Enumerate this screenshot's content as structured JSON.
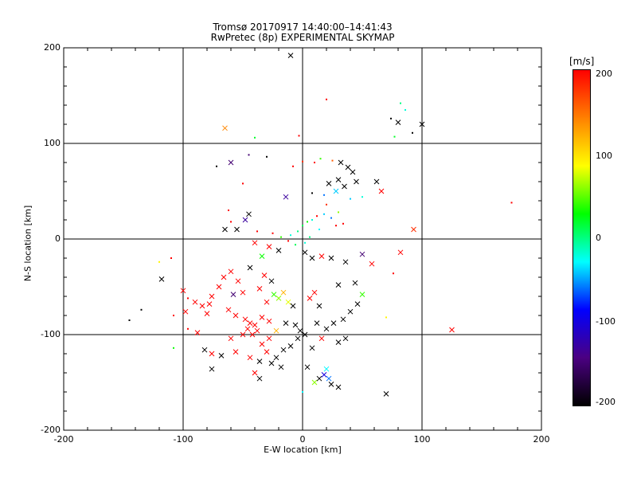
{
  "title_line1": "Tromsø 20170917 14:40:00–14:41:43",
  "title_line2": "RwPretec (8p) EXPERIMENTAL SKYMAP",
  "colorbar": {
    "unit": "[m/s]",
    "ticks": [
      "200",
      "100",
      "0",
      "-100",
      "-200"
    ],
    "range": [
      -200,
      200
    ],
    "colormap": [
      "#000000",
      "#4b0082",
      "#0000ff",
      "#00ffff",
      "#00ff00",
      "#ffff00",
      "#ff8000",
      "#ff0000"
    ]
  },
  "chart_data": {
    "type": "scatter",
    "title": "Tromsø 20170917 14:40:00–14:41:43 RwPretec (8p) EXPERIMENTAL SKYMAP",
    "xlabel": "E-W location [km]",
    "ylabel": "N-S location [km]",
    "xlim": [
      -200,
      200
    ],
    "ylim": [
      -200,
      200
    ],
    "x_ticks": [
      "-200",
      "-100",
      "0",
      "100",
      "200"
    ],
    "y_ticks": [
      "200",
      "100",
      "0",
      "-100",
      "-200"
    ],
    "grid": [
      -100,
      0,
      100
    ],
    "color_variable": "velocity [m/s]",
    "points": [
      {
        "x": -10,
        "y": 192,
        "v": -200,
        "m": "x"
      },
      {
        "x": 20,
        "y": 146,
        "v": 200,
        "m": "dot"
      },
      {
        "x": 82,
        "y": 142,
        "v": 0,
        "m": "dot"
      },
      {
        "x": 86,
        "y": 135,
        "v": -20,
        "m": "dot"
      },
      {
        "x": 74,
        "y": 126,
        "v": -200,
        "m": "dot"
      },
      {
        "x": 80,
        "y": 122,
        "v": -200,
        "m": "x"
      },
      {
        "x": 100,
        "y": 120,
        "v": -200,
        "m": "x"
      },
      {
        "x": 77,
        "y": 107,
        "v": 20,
        "m": "dot"
      },
      {
        "x": 92,
        "y": 111,
        "v": -200,
        "m": "dot"
      },
      {
        "x": -65,
        "y": 116,
        "v": 140,
        "m": "x"
      },
      {
        "x": -40,
        "y": 106,
        "v": 20,
        "m": "dot"
      },
      {
        "x": -3,
        "y": 108,
        "v": 200,
        "m": "dot"
      },
      {
        "x": -72,
        "y": 76,
        "v": -200,
        "m": "dot"
      },
      {
        "x": -60,
        "y": 80,
        "v": -150,
        "m": "x"
      },
      {
        "x": -45,
        "y": 88,
        "v": -150,
        "m": "dot"
      },
      {
        "x": -30,
        "y": 86,
        "v": -200,
        "m": "dot"
      },
      {
        "x": -8,
        "y": 76,
        "v": 200,
        "m": "dot"
      },
      {
        "x": 0,
        "y": 81,
        "v": 180,
        "m": "dot"
      },
      {
        "x": 10,
        "y": 80,
        "v": 200,
        "m": "dot"
      },
      {
        "x": 15,
        "y": 84,
        "v": 40,
        "m": "dot"
      },
      {
        "x": 25,
        "y": 82,
        "v": 160,
        "m": "dot"
      },
      {
        "x": 32,
        "y": 80,
        "v": -200,
        "m": "x"
      },
      {
        "x": 38,
        "y": 75,
        "v": -200,
        "m": "x"
      },
      {
        "x": 42,
        "y": 70,
        "v": -200,
        "m": "x"
      },
      {
        "x": 45,
        "y": 60,
        "v": -200,
        "m": "x"
      },
      {
        "x": 30,
        "y": 62,
        "v": -200,
        "m": "x"
      },
      {
        "x": 35,
        "y": 55,
        "v": -200,
        "m": "x"
      },
      {
        "x": 28,
        "y": 50,
        "v": -40,
        "m": "x"
      },
      {
        "x": 22,
        "y": 58,
        "v": -200,
        "m": "x"
      },
      {
        "x": 62,
        "y": 60,
        "v": -200,
        "m": "x"
      },
      {
        "x": 66,
        "y": 50,
        "v": 200,
        "m": "x"
      },
      {
        "x": 40,
        "y": 42,
        "v": -40,
        "m": "dot"
      },
      {
        "x": 50,
        "y": 44,
        "v": -20,
        "m": "dot"
      },
      {
        "x": 18,
        "y": 46,
        "v": -60,
        "m": "dot"
      },
      {
        "x": 8,
        "y": 48,
        "v": -200,
        "m": "dot"
      },
      {
        "x": -14,
        "y": 44,
        "v": -130,
        "m": "x"
      },
      {
        "x": -50,
        "y": 58,
        "v": 200,
        "m": "dot"
      },
      {
        "x": -62,
        "y": 30,
        "v": 200,
        "m": "dot"
      },
      {
        "x": -45,
        "y": 26,
        "v": -200,
        "m": "x"
      },
      {
        "x": -48,
        "y": 20,
        "v": -130,
        "m": "x"
      },
      {
        "x": -60,
        "y": 18,
        "v": 200,
        "m": "dot"
      },
      {
        "x": -55,
        "y": 10,
        "v": -200,
        "m": "x"
      },
      {
        "x": -65,
        "y": 10,
        "v": -200,
        "m": "x"
      },
      {
        "x": -38,
        "y": 8,
        "v": 200,
        "m": "dot"
      },
      {
        "x": -25,
        "y": 6,
        "v": 200,
        "m": "dot"
      },
      {
        "x": -18,
        "y": 2,
        "v": 40,
        "m": "dot"
      },
      {
        "x": -10,
        "y": 4,
        "v": -20,
        "m": "dot"
      },
      {
        "x": -4,
        "y": 8,
        "v": 0,
        "m": "dot"
      },
      {
        "x": 0,
        "y": 14,
        "v": 10,
        "m": "dot"
      },
      {
        "x": 4,
        "y": 18,
        "v": 30,
        "m": "dot"
      },
      {
        "x": 8,
        "y": 20,
        "v": -20,
        "m": "dot"
      },
      {
        "x": 12,
        "y": 24,
        "v": 200,
        "m": "dot"
      },
      {
        "x": 18,
        "y": 26,
        "v": -40,
        "m": "dot"
      },
      {
        "x": 24,
        "y": 22,
        "v": -60,
        "m": "dot"
      },
      {
        "x": 30,
        "y": 28,
        "v": 60,
        "m": "dot"
      },
      {
        "x": 28,
        "y": 14,
        "v": 200,
        "m": "dot"
      },
      {
        "x": 34,
        "y": 16,
        "v": 200,
        "m": "dot"
      },
      {
        "x": 20,
        "y": 36,
        "v": 180,
        "m": "dot"
      },
      {
        "x": 14,
        "y": 10,
        "v": -30,
        "m": "dot"
      },
      {
        "x": 6,
        "y": 2,
        "v": 0,
        "m": "dot"
      },
      {
        "x": 2,
        "y": -4,
        "v": -20,
        "m": "dot"
      },
      {
        "x": -6,
        "y": -6,
        "v": 10,
        "m": "dot"
      },
      {
        "x": -12,
        "y": -2,
        "v": 200,
        "m": "dot"
      },
      {
        "x": -20,
        "y": -12,
        "v": -200,
        "m": "x"
      },
      {
        "x": -28,
        "y": -8,
        "v": 200,
        "m": "x"
      },
      {
        "x": -40,
        "y": -4,
        "v": 200,
        "m": "x"
      },
      {
        "x": -34,
        "y": -18,
        "v": 30,
        "m": "x"
      },
      {
        "x": 2,
        "y": -14,
        "v": -200,
        "m": "x"
      },
      {
        "x": 8,
        "y": -20,
        "v": -200,
        "m": "x"
      },
      {
        "x": 16,
        "y": -18,
        "v": 200,
        "m": "x"
      },
      {
        "x": 24,
        "y": -20,
        "v": -200,
        "m": "x"
      },
      {
        "x": 36,
        "y": -24,
        "v": -200,
        "m": "x"
      },
      {
        "x": 50,
        "y": -16,
        "v": -150,
        "m": "x"
      },
      {
        "x": 58,
        "y": -26,
        "v": 200,
        "m": "x"
      },
      {
        "x": 82,
        "y": -14,
        "v": 200,
        "m": "x"
      },
      {
        "x": 93,
        "y": 10,
        "v": 180,
        "m": "x"
      },
      {
        "x": 175,
        "y": 38,
        "v": 200,
        "m": "dot"
      },
      {
        "x": -110,
        "y": -20,
        "v": 200,
        "m": "dot"
      },
      {
        "x": -118,
        "y": -42,
        "v": -200,
        "m": "x"
      },
      {
        "x": -120,
        "y": -24,
        "v": 90,
        "m": "dot"
      },
      {
        "x": -100,
        "y": -54,
        "v": 200,
        "m": "x"
      },
      {
        "x": -96,
        "y": -62,
        "v": 200,
        "m": "dot"
      },
      {
        "x": -90,
        "y": -66,
        "v": 200,
        "m": "x"
      },
      {
        "x": -78,
        "y": -68,
        "v": 200,
        "m": "x"
      },
      {
        "x": -76,
        "y": -60,
        "v": 200,
        "m": "x"
      },
      {
        "x": -80,
        "y": -78,
        "v": 200,
        "m": "x"
      },
      {
        "x": -98,
        "y": -76,
        "v": 200,
        "m": "x"
      },
      {
        "x": -84,
        "y": -70,
        "v": 200,
        "m": "x"
      },
      {
        "x": -70,
        "y": -50,
        "v": 200,
        "m": "x"
      },
      {
        "x": -66,
        "y": -40,
        "v": 200,
        "m": "x"
      },
      {
        "x": -60,
        "y": -34,
        "v": 200,
        "m": "x"
      },
      {
        "x": -54,
        "y": -44,
        "v": 200,
        "m": "x"
      },
      {
        "x": -58,
        "y": -58,
        "v": -150,
        "m": "x"
      },
      {
        "x": -50,
        "y": -56,
        "v": 200,
        "m": "x"
      },
      {
        "x": -62,
        "y": -74,
        "v": 200,
        "m": "x"
      },
      {
        "x": -56,
        "y": -80,
        "v": 200,
        "m": "x"
      },
      {
        "x": -48,
        "y": -84,
        "v": 200,
        "m": "x"
      },
      {
        "x": -44,
        "y": -88,
        "v": 200,
        "m": "x"
      },
      {
        "x": -46,
        "y": -94,
        "v": 200,
        "m": "x"
      },
      {
        "x": -40,
        "y": -90,
        "v": 200,
        "m": "x"
      },
      {
        "x": -38,
        "y": -96,
        "v": 200,
        "m": "x"
      },
      {
        "x": -42,
        "y": -100,
        "v": 200,
        "m": "x"
      },
      {
        "x": -50,
        "y": -100,
        "v": 200,
        "m": "x"
      },
      {
        "x": -34,
        "y": -82,
        "v": 200,
        "m": "x"
      },
      {
        "x": -30,
        "y": -66,
        "v": 200,
        "m": "x"
      },
      {
        "x": -24,
        "y": -58,
        "v": 40,
        "m": "x"
      },
      {
        "x": -20,
        "y": -62,
        "v": 60,
        "m": "x"
      },
      {
        "x": -16,
        "y": -56,
        "v": 120,
        "m": "x"
      },
      {
        "x": -12,
        "y": -66,
        "v": 80,
        "m": "x"
      },
      {
        "x": -8,
        "y": -70,
        "v": -200,
        "m": "x"
      },
      {
        "x": -26,
        "y": -44,
        "v": -200,
        "m": "x"
      },
      {
        "x": -32,
        "y": -38,
        "v": 200,
        "m": "x"
      },
      {
        "x": -44,
        "y": -30,
        "v": -200,
        "m": "x"
      },
      {
        "x": -36,
        "y": -52,
        "v": 200,
        "m": "x"
      },
      {
        "x": -28,
        "y": -86,
        "v": 200,
        "m": "x"
      },
      {
        "x": -22,
        "y": -96,
        "v": 120,
        "m": "x"
      },
      {
        "x": -28,
        "y": -104,
        "v": 200,
        "m": "x"
      },
      {
        "x": -34,
        "y": -110,
        "v": 200,
        "m": "x"
      },
      {
        "x": -30,
        "y": -118,
        "v": 200,
        "m": "x"
      },
      {
        "x": -14,
        "y": -88,
        "v": -200,
        "m": "x"
      },
      {
        "x": -6,
        "y": -90,
        "v": -200,
        "m": "x"
      },
      {
        "x": -2,
        "y": -96,
        "v": -200,
        "m": "x"
      },
      {
        "x": 2,
        "y": -100,
        "v": -200,
        "m": "x"
      },
      {
        "x": -4,
        "y": -104,
        "v": -200,
        "m": "x"
      },
      {
        "x": -10,
        "y": -112,
        "v": -200,
        "m": "x"
      },
      {
        "x": -16,
        "y": -116,
        "v": -200,
        "m": "x"
      },
      {
        "x": -22,
        "y": -124,
        "v": -200,
        "m": "x"
      },
      {
        "x": -26,
        "y": -130,
        "v": -200,
        "m": "x"
      },
      {
        "x": -18,
        "y": -134,
        "v": -200,
        "m": "x"
      },
      {
        "x": -36,
        "y": -128,
        "v": -200,
        "m": "x"
      },
      {
        "x": -44,
        "y": -124,
        "v": 200,
        "m": "x"
      },
      {
        "x": -56,
        "y": -118,
        "v": 200,
        "m": "x"
      },
      {
        "x": -60,
        "y": -104,
        "v": 200,
        "m": "x"
      },
      {
        "x": -68,
        "y": -122,
        "v": -200,
        "m": "x"
      },
      {
        "x": -76,
        "y": -120,
        "v": 200,
        "m": "x"
      },
      {
        "x": -76,
        "y": -136,
        "v": -200,
        "m": "x"
      },
      {
        "x": -82,
        "y": -116,
        "v": -200,
        "m": "x"
      },
      {
        "x": -88,
        "y": -98,
        "v": 200,
        "m": "x"
      },
      {
        "x": -96,
        "y": -94,
        "v": 200,
        "m": "dot"
      },
      {
        "x": -108,
        "y": -80,
        "v": 200,
        "m": "dot"
      },
      {
        "x": -145,
        "y": -85,
        "v": -200,
        "m": "dot"
      },
      {
        "x": -135,
        "y": -74,
        "v": -200,
        "m": "dot"
      },
      {
        "x": -108,
        "y": -114,
        "v": 30,
        "m": "dot"
      },
      {
        "x": -40,
        "y": -140,
        "v": 200,
        "m": "x"
      },
      {
        "x": -36,
        "y": -146,
        "v": -200,
        "m": "x"
      },
      {
        "x": 6,
        "y": -62,
        "v": 200,
        "m": "x"
      },
      {
        "x": 10,
        "y": -56,
        "v": 200,
        "m": "x"
      },
      {
        "x": 14,
        "y": -70,
        "v": -200,
        "m": "x"
      },
      {
        "x": 12,
        "y": -88,
        "v": -200,
        "m": "x"
      },
      {
        "x": 20,
        "y": -94,
        "v": -200,
        "m": "x"
      },
      {
        "x": 26,
        "y": -88,
        "v": -200,
        "m": "x"
      },
      {
        "x": 34,
        "y": -84,
        "v": -200,
        "m": "x"
      },
      {
        "x": 40,
        "y": -76,
        "v": -200,
        "m": "x"
      },
      {
        "x": 46,
        "y": -68,
        "v": -200,
        "m": "x"
      },
      {
        "x": 50,
        "y": -58,
        "v": 40,
        "m": "x"
      },
      {
        "x": 44,
        "y": -46,
        "v": -200,
        "m": "x"
      },
      {
        "x": 30,
        "y": -48,
        "v": -200,
        "m": "x"
      },
      {
        "x": 36,
        "y": -104,
        "v": -200,
        "m": "x"
      },
      {
        "x": 30,
        "y": -108,
        "v": -200,
        "m": "x"
      },
      {
        "x": 16,
        "y": -104,
        "v": 200,
        "m": "x"
      },
      {
        "x": 8,
        "y": -114,
        "v": -200,
        "m": "x"
      },
      {
        "x": 4,
        "y": -134,
        "v": -200,
        "m": "x"
      },
      {
        "x": 10,
        "y": -150,
        "v": 60,
        "m": "x"
      },
      {
        "x": 14,
        "y": -146,
        "v": -200,
        "m": "x"
      },
      {
        "x": 18,
        "y": -142,
        "v": -100,
        "m": "x"
      },
      {
        "x": 22,
        "y": -146,
        "v": -60,
        "m": "x"
      },
      {
        "x": 20,
        "y": -136,
        "v": -30,
        "m": "x"
      },
      {
        "x": 24,
        "y": -152,
        "v": -200,
        "m": "x"
      },
      {
        "x": 30,
        "y": -155,
        "v": -200,
        "m": "x"
      },
      {
        "x": 0,
        "y": -160,
        "v": -30,
        "m": "dot"
      },
      {
        "x": 70,
        "y": -162,
        "v": -200,
        "m": "x"
      },
      {
        "x": 70,
        "y": -82,
        "v": 90,
        "m": "dot"
      },
      {
        "x": 125,
        "y": -95,
        "v": 200,
        "m": "x"
      },
      {
        "x": 76,
        "y": -36,
        "v": 200,
        "m": "dot"
      }
    ]
  }
}
